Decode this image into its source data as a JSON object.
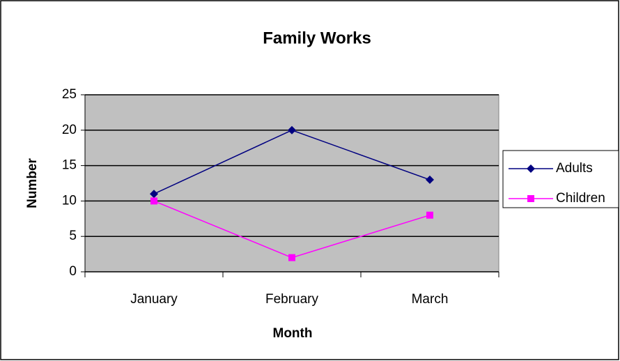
{
  "chart_data": {
    "type": "line",
    "title": "Family Works",
    "x_label": "Month",
    "y_label": "Number",
    "categories": [
      "January",
      "February",
      "March"
    ],
    "series": [
      {
        "name": "Adults",
        "color": "#000080",
        "marker": "diamond",
        "values": [
          11,
          20,
          13
        ]
      },
      {
        "name": "Children",
        "color": "#ff00ff",
        "marker": "square",
        "values": [
          10,
          2,
          8
        ]
      }
    ],
    "ylim": [
      0,
      25
    ],
    "yticks": [
      0,
      5,
      10,
      15,
      20,
      25
    ],
    "grid": true,
    "legend": "right"
  }
}
